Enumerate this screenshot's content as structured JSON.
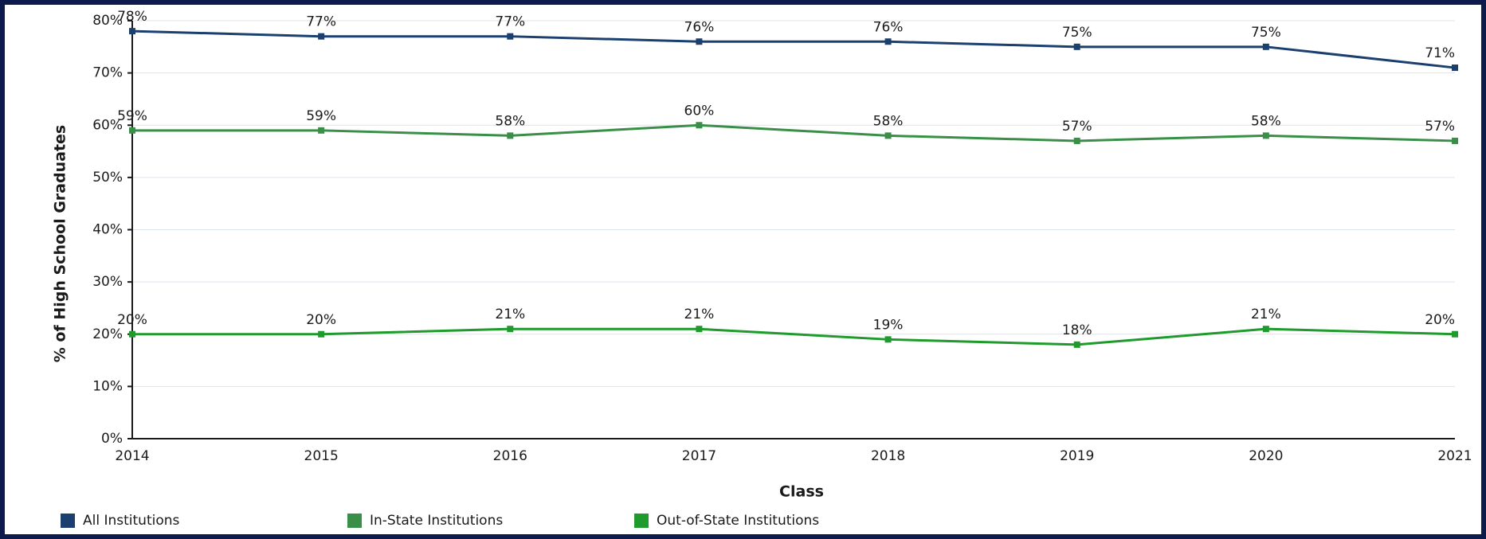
{
  "chart_data": {
    "type": "line",
    "y_label": "% of High School Graduates",
    "x_label": "Class",
    "categories": [
      "2014",
      "2015",
      "2016",
      "2017",
      "2018",
      "2019",
      "2020",
      "2021"
    ],
    "series": [
      {
        "name": "All Institutions",
        "color": "#1b3f6e",
        "values": [
          78,
          77,
          77,
          76,
          76,
          75,
          75,
          71
        ],
        "value_labels": [
          "78%",
          "77%",
          "77%",
          "76%",
          "76%",
          "75%",
          "75%",
          "71%"
        ]
      },
      {
        "name": "In-State Institutions",
        "color": "#3a8f48",
        "values": [
          59,
          59,
          58,
          60,
          58,
          57,
          58,
          57
        ],
        "value_labels": [
          "59%",
          "59%",
          "58%",
          "60%",
          "58%",
          "57%",
          "58%",
          "57%"
        ]
      },
      {
        "name": "Out-of-State Institutions",
        "color": "#1f9a2c",
        "values": [
          20,
          20,
          21,
          21,
          19,
          18,
          21,
          20
        ],
        "value_labels": [
          "20%",
          "20%",
          "21%",
          "21%",
          "19%",
          "18%",
          "21%",
          "20%"
        ]
      }
    ],
    "ylim": [
      0,
      80
    ],
    "yticks": [
      {
        "value": 0,
        "label": "0%"
      },
      {
        "value": 10,
        "label": "10%"
      },
      {
        "value": 20,
        "label": "20%"
      },
      {
        "value": 30,
        "label": "30%"
      },
      {
        "value": 40,
        "label": "40%"
      },
      {
        "value": 50,
        "label": "50%"
      },
      {
        "value": 60,
        "label": "60%"
      },
      {
        "value": 70,
        "label": "70%"
      },
      {
        "value": 80,
        "label": "80%"
      }
    ],
    "grid": true,
    "legend": "bottom"
  }
}
